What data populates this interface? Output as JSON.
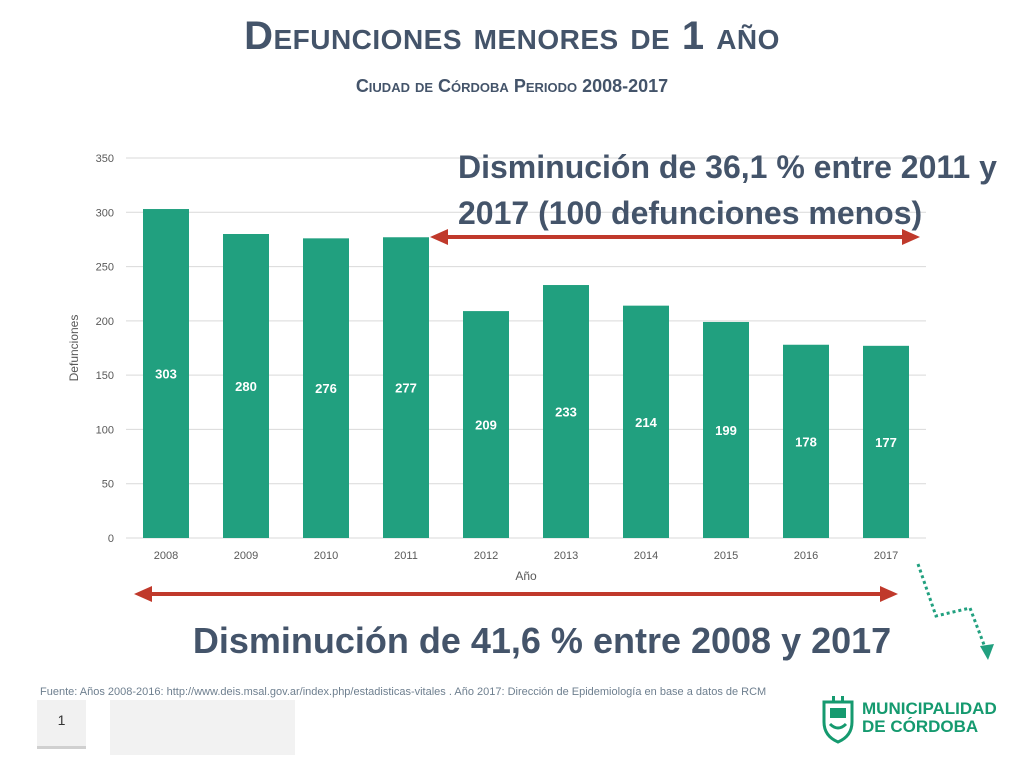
{
  "title": "Defunciones menores de 1 año",
  "subtitle": "Ciudad de Córdoba Periodo 2008-2017",
  "annotation_top": "Disminución de 36,1 % entre 2011 y 2017 (100 defunciones menos)",
  "annotation_bottom": "Disminución de 41,6 % entre 2008 y 2017",
  "source": "Fuente: Años 2008-2016: http://www.deis.msal.gov.ar/index.php/estadisticas-vitales . Año 2017: Dirección de Epidemiología en base a datos de RCM",
  "page_number": "1",
  "logo": {
    "line1": "MUNICIPALIDAD",
    "line2": "DE CÓRDOBA"
  },
  "colors": {
    "bar": "#21a07f",
    "arrow": "#c0392b",
    "title": "#44546a",
    "logo": "#159a6f",
    "dotted_arrow": "#21a07f"
  },
  "chart_data": {
    "type": "bar",
    "categories": [
      "2008",
      "2009",
      "2010",
      "2011",
      "2012",
      "2013",
      "2014",
      "2015",
      "2016",
      "2017"
    ],
    "values": [
      303,
      280,
      276,
      277,
      209,
      233,
      214,
      199,
      178,
      177
    ],
    "xlabel": "Año",
    "ylabel": "Defunciones",
    "ylim": [
      0,
      350
    ],
    "yticks": [
      0,
      50,
      100,
      150,
      200,
      250,
      300,
      350
    ],
    "grid": true,
    "data_labels": true
  }
}
